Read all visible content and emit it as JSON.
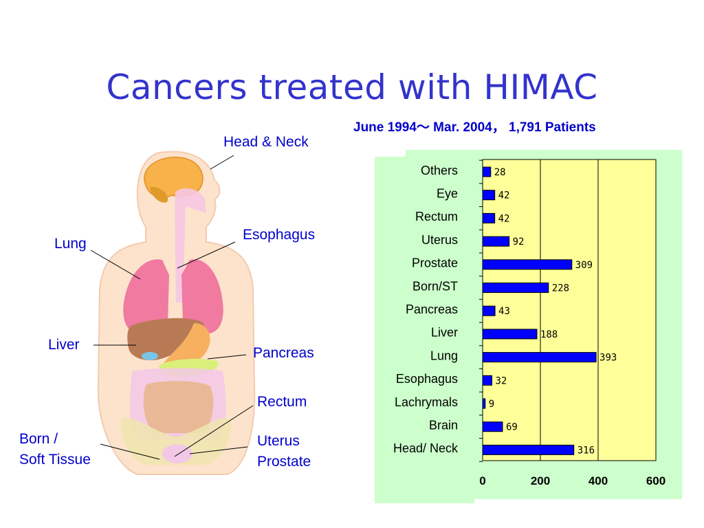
{
  "slide": {
    "title": "Cancers treated with HIMAC",
    "subtitle": "June 1994～ Mar. 2004， 1,791 Patients"
  },
  "body_labels": {
    "head_neck": "Head & Neck",
    "esophagus": "Esophagus",
    "lung": "Lung",
    "liver": "Liver",
    "pancreas": "Pancreas",
    "rectum": "Rectum",
    "born_line1": "Born /",
    "born_line2": "Soft Tissue",
    "uterus": "Uterus",
    "prostate": "Prostate"
  },
  "colors": {
    "title": "#3333cc",
    "label": "#0000cc",
    "bar": "#0000ff",
    "plot_bg": "#ffff99",
    "panel_bg": "#ccffcc"
  },
  "chart_data": {
    "type": "bar",
    "orientation": "horizontal",
    "categories": [
      "Others",
      "Eye",
      "Rectum",
      "Uterus",
      "Prostate",
      "Born/ST",
      "Pancreas",
      "Liver",
      "Lung",
      "Esophagus",
      "Lachrymals",
      "Brain",
      "Head/ Neck"
    ],
    "values": [
      28,
      42,
      42,
      92,
      309,
      228,
      43,
      188,
      393,
      32,
      9,
      69,
      316
    ],
    "xlim": [
      0,
      600
    ],
    "xticks": [
      0,
      200,
      400,
      600
    ],
    "grid": true
  }
}
